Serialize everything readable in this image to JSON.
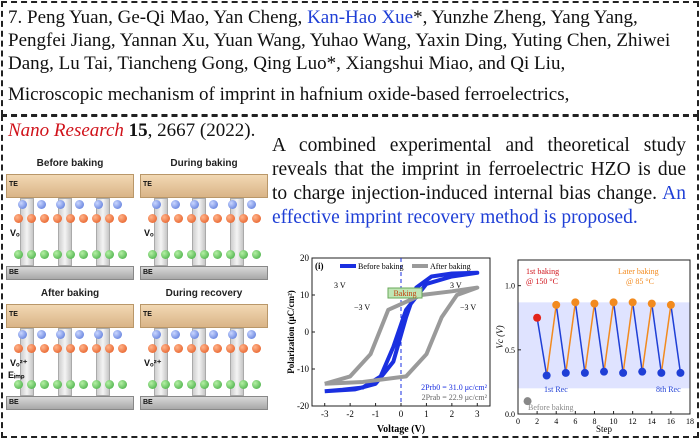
{
  "entry": {
    "authors_num": "7. ",
    "authors_a": "Peng Yuan, Ge-Qi Mao, Yan Cheng, ",
    "authors_hl": "Kan-Hao Xue",
    "authors_b": "*, Yunzhe Zheng, Yang Yang, Pengfei Jiang, Yannan Xu, Yuan Wang, Yuhao Wang, Yaxin Ding, Yuting Chen, Zhiwei Dang, Lu Tai, Tiancheng Gong, Qing Luo*, Xiangshui Miao, and Qi Liu,",
    "title": "Microscopic mechanism of imprint in hafnium oxide-based ferroelectrics,",
    "journal": "Nano Research",
    "volume": "15",
    "pages": ", 2667 (2022)."
  },
  "abstract": {
    "black": "A combined experimental and theoretical study reveals that the imprint in ferroelectric HZO is due to charge injection-induced internal bias change.",
    "blue": "An effective imprint recovery method is proposed."
  },
  "panels": {
    "p1_title": "Before baking",
    "p2_title": "During baking",
    "p3_title": "After baking",
    "p4_title": "During recovery",
    "te": "TE",
    "be": "BE",
    "vo": "Vₒ",
    "vo2": "Vₒ²⁺",
    "eimp": "Eᵢₘₚ"
  },
  "colors": {
    "blue": "#1f3fd6",
    "red": "#d0121a",
    "orange": "#f28a1e",
    "gray": "#9a9a9a"
  },
  "chart_data": [
    {
      "type": "line",
      "panel_label": "(i)",
      "xlabel": "Voltage (V)",
      "ylabel": "Polarization (μC/cm²)",
      "xlim": [
        -3.5,
        3.5
      ],
      "ylim": [
        -20,
        20
      ],
      "xticks": [
        "-3",
        "-2",
        "-1",
        "0",
        "1",
        "2",
        "3"
      ],
      "yticks": [
        "-20",
        "-10",
        "0",
        "10",
        "20"
      ],
      "legend": [
        "Before baking",
        "After baking"
      ],
      "inset_labels": [
        "3 V",
        "−3 V",
        "Baking",
        "3 V",
        "−3 V"
      ],
      "annotations": [
        "2Prb0 = 31.0 μc/cm²",
        "2Prab = 22.9 μc/cm²"
      ],
      "series": [
        {
          "name": "Before baking",
          "color": "#1a2fe0",
          "upper": [
            [
              -3,
              -16
            ],
            [
              -1.8,
              -15.5
            ],
            [
              -1.0,
              -14
            ],
            [
              -0.3,
              -8
            ],
            [
              0.2,
              4
            ],
            [
              0.6,
              12
            ],
            [
              1.2,
              15
            ],
            [
              2,
              15.8
            ],
            [
              3,
              16
            ]
          ],
          "lower": [
            [
              3,
              16
            ],
            [
              2,
              15
            ],
            [
              1.0,
              13
            ],
            [
              0.2,
              6
            ],
            [
              -0.3,
              -4
            ],
            [
              -0.8,
              -12
            ],
            [
              -1.5,
              -15
            ],
            [
              -2.3,
              -15.6
            ],
            [
              -3,
              -16
            ]
          ]
        },
        {
          "name": "After baking",
          "color": "#9a9a9a",
          "upper": [
            [
              -3,
              -14
            ],
            [
              -1.5,
              -13.5
            ],
            [
              0.2,
              -12
            ],
            [
              1.0,
              -6
            ],
            [
              1.6,
              4
            ],
            [
              2.2,
              10
            ],
            [
              3,
              12
            ]
          ],
          "lower": [
            [
              3,
              12
            ],
            [
              2,
              11
            ],
            [
              0.8,
              10
            ],
            [
              -0.5,
              6
            ],
            [
              -1.2,
              -6
            ],
            [
              -2,
              -12
            ],
            [
              -3,
              -14
            ]
          ]
        }
      ]
    },
    {
      "type": "scatter",
      "xlabel": "Step",
      "ylabel": "Vc (V)",
      "xlim": [
        0,
        18
      ],
      "ylim": [
        0,
        1.2
      ],
      "xticks": [
        "0",
        "2",
        "4",
        "6",
        "8",
        "10",
        "12",
        "14",
        "16",
        "18"
      ],
      "yticks": [
        "0.0",
        "0.5",
        "1.0"
      ],
      "annotations": [
        "1st baking",
        "@ 150 °C",
        "Later baking",
        "@ 85 °C",
        "1st Rec",
        "8th Rec",
        "Before baking"
      ],
      "series": [
        {
          "name": "Baking",
          "points": [
            [
              2,
              0.75
            ],
            [
              4,
              0.85
            ],
            [
              6,
              0.87
            ],
            [
              8,
              0.86
            ],
            [
              10,
              0.87
            ],
            [
              12,
              0.87
            ],
            [
              14,
              0.86
            ],
            [
              16,
              0.85
            ]
          ]
        },
        {
          "name": "Recovery",
          "points": [
            [
              3,
              0.3
            ],
            [
              5,
              0.32
            ],
            [
              7,
              0.32
            ],
            [
              9,
              0.33
            ],
            [
              11,
              0.32
            ],
            [
              13,
              0.33
            ],
            [
              15,
              0.32
            ],
            [
              17,
              0.32
            ]
          ]
        },
        {
          "name": "Before baking",
          "points": [
            [
              1,
              0.1
            ]
          ]
        }
      ]
    }
  ]
}
